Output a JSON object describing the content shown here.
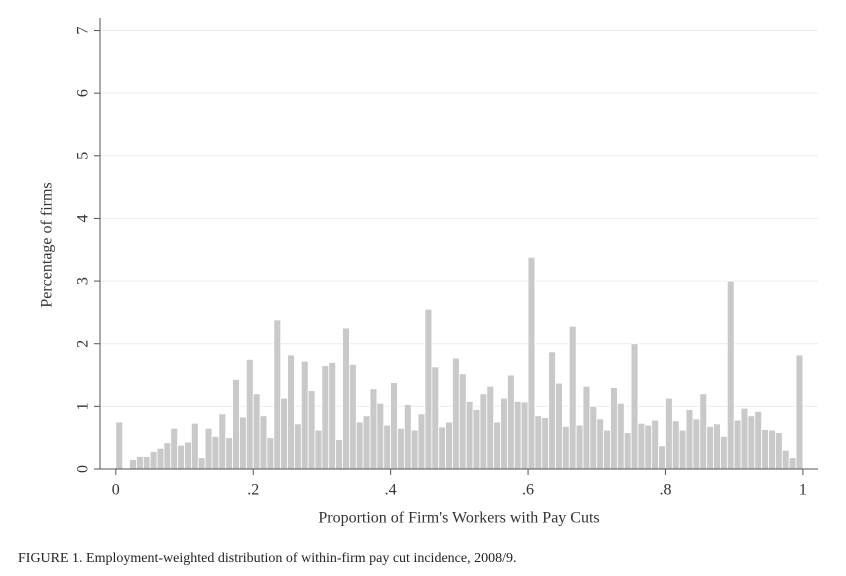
{
  "chart_data": {
    "type": "histogram",
    "xlabel": "Proportion of Firm's Workers with Pay Cuts",
    "ylabel": "Percentage of firms",
    "caption": "FIGURE 1. Employment-weighted distribution of within-firm pay cut incidence, 2008/9.",
    "color": "#c9c9c9",
    "grid": true,
    "xlim": [
      -0.023,
      1.022
    ],
    "ylim": [
      0,
      7.2
    ],
    "xticks": [
      0,
      {
        "value": 0.2,
        "label": ".2"
      },
      {
        "value": 0.4,
        "label": ".4"
      },
      {
        "value": 0.6,
        "label": ".6"
      },
      {
        "value": 0.8,
        "label": ".8"
      },
      1
    ],
    "yticks": [
      0,
      1,
      2,
      3,
      4,
      5,
      6,
      7
    ],
    "bins": [
      0,
      0.01,
      0.02,
      0.03,
      0.04,
      0.05,
      0.06,
      0.07,
      0.08,
      0.09,
      0.1,
      0.11,
      0.12,
      0.13,
      0.14,
      0.15,
      0.16,
      0.17,
      0.18,
      0.19,
      0.2,
      0.21,
      0.22,
      0.23,
      0.24,
      0.25,
      0.26,
      0.27,
      0.28,
      0.29,
      0.3,
      0.31,
      0.32,
      0.33,
      0.34,
      0.35,
      0.36,
      0.37,
      0.38,
      0.39,
      0.4,
      0.41,
      0.42,
      0.43,
      0.44,
      0.45,
      0.46,
      0.47,
      0.48,
      0.49,
      0.5,
      0.51,
      0.52,
      0.53,
      0.54,
      0.55,
      0.56,
      0.57,
      0.58,
      0.59,
      0.6,
      0.61,
      0.62,
      0.63,
      0.64,
      0.65,
      0.66,
      0.67,
      0.68,
      0.69,
      0.7,
      0.71,
      0.72,
      0.73,
      0.74,
      0.75,
      0.76,
      0.77,
      0.78,
      0.79,
      0.8,
      0.81,
      0.82,
      0.83,
      0.84,
      0.85,
      0.86,
      0.87,
      0.88,
      0.89,
      0.9,
      0.91,
      0.92,
      0.93,
      0.94,
      0.95,
      0.96,
      0.97,
      0.98,
      0.99,
      1
    ],
    "values": [
      0.75,
      0,
      0.15,
      0.2,
      0.2,
      0.28,
      0.33,
      0.42,
      0.65,
      0.38,
      0.43,
      0.73,
      0.18,
      0.65,
      0.52,
      0.88,
      0.5,
      1.43,
      0.83,
      1.75,
      1.2,
      0.85,
      0.5,
      2.38,
      1.13,
      1.82,
      0.72,
      1.72,
      1.25,
      0.62,
      1.65,
      1.7,
      0.47,
      2.25,
      1.67,
      0.75,
      0.85,
      1.28,
      1.05,
      0.7,
      1.38,
      0.65,
      1.03,
      0.62,
      0.88,
      2.55,
      1.63,
      0.67,
      0.75,
      1.77,
      1.52,
      1.08,
      0.95,
      1.2,
      1.32,
      0.75,
      1.13,
      1.5,
      1.08,
      1.07,
      3.38,
      0.85,
      0.82,
      1.87,
      1.37,
      0.68,
      2.28,
      0.7,
      1.32,
      1.0,
      0.8,
      0.62,
      1.3,
      1.05,
      0.58,
      2.0,
      0.73,
      0.7,
      0.78,
      0.37,
      1.13,
      0.77,
      0.62,
      0.95,
      0.8,
      1.2,
      0.68,
      0.72,
      0.52,
      3.0,
      0.78,
      0.97,
      0.85,
      0.92,
      0.63,
      0.62,
      0.58,
      0.3,
      0.18,
      1.82
    ]
  }
}
